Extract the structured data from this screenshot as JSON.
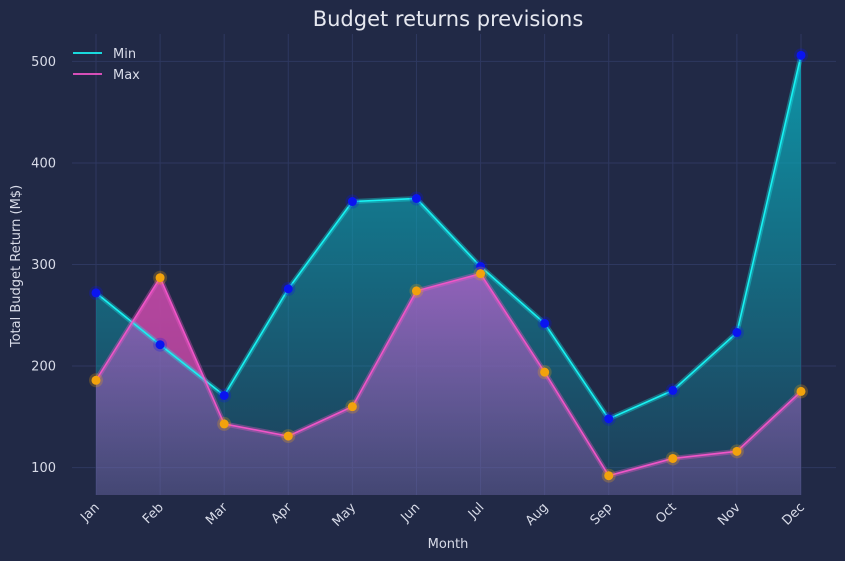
{
  "chart_data": {
    "type": "line",
    "title": "Budget returns previsions",
    "xlabel": "Month",
    "ylabel": "Total Budget Return (M$)",
    "categories": [
      "Jan",
      "Feb",
      "Mar",
      "Apr",
      "May",
      "Jun",
      "Jul",
      "Aug",
      "Sep",
      "Oct",
      "Nov",
      "Dec"
    ],
    "series": [
      {
        "name": "Min",
        "color": "#18f2f2",
        "marker_color": "#0a14f0",
        "values": [
          272,
          221,
          171,
          276,
          362,
          365,
          298,
          242,
          148,
          176,
          233,
          506
        ]
      },
      {
        "name": "Max",
        "color": "#f055c8",
        "marker_color": "#f2a20c",
        "values": [
          186,
          287,
          143,
          131,
          160,
          274,
          291,
          194,
          92,
          109,
          116,
          175
        ]
      }
    ],
    "ylim": [
      73,
      527
    ],
    "yticks": [
      100,
      200,
      300,
      400,
      500
    ],
    "grid": true,
    "legend": "top-left",
    "colors": {
      "background": "#212946",
      "grid": "#2e3860",
      "fill_min": "#0ba7b8",
      "fill_max": "#9a5ab0",
      "fill_max_over": "#c0409a"
    }
  }
}
